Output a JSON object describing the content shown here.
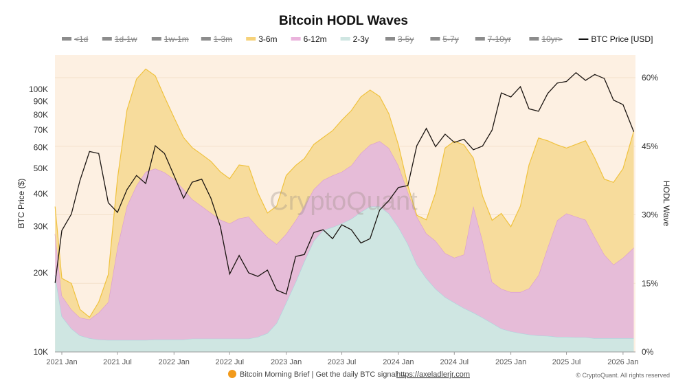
{
  "chart_data": {
    "type": "area",
    "title": "Bitcoin HODL Waves",
    "ylabel_left": "BTC Price ($)",
    "ylabel_right": "HODL Wave",
    "left_axis": {
      "scale": "log",
      "range": [
        10000,
        160000
      ],
      "ticks": [
        "10K",
        "20K",
        "30K",
        "40K",
        "50K",
        "60K",
        "70K",
        "80K",
        "90K",
        "100K"
      ],
      "tick_values": [
        10000,
        20000,
        30000,
        40000,
        50000,
        60000,
        70000,
        80000,
        90000,
        100000
      ]
    },
    "right_axis": {
      "scale": "linear",
      "range": [
        0,
        65
      ],
      "ticks": [
        "0%",
        "15%",
        "30%",
        "45%",
        "60%"
      ],
      "tick_values": [
        0,
        15,
        30,
        45,
        60
      ]
    },
    "x_ticks": [
      {
        "label": "2021 Jan",
        "date": "2021-01-01"
      },
      {
        "label": "2021 Jul",
        "date": "2021-07-01"
      },
      {
        "label": "2022 Jan",
        "date": "2022-01-01"
      },
      {
        "label": "2022 Jul",
        "date": "2022-07-01"
      },
      {
        "label": "2023 Jan",
        "date": "2023-01-01"
      },
      {
        "label": "2023 Jul",
        "date": "2023-07-01"
      },
      {
        "label": "2024 Jan",
        "date": "2024-01-01"
      },
      {
        "label": "2024 Jul",
        "date": "2024-07-01"
      },
      {
        "label": "2025 Jan",
        "date": "2025-01-01"
      },
      {
        "label": "2025 Jul",
        "date": "2025-07-01"
      },
      {
        "label": "2026 Jan",
        "date": "2026-01-01"
      }
    ],
    "grid": true,
    "legend_placement": "top",
    "legend": [
      {
        "label": "<1d",
        "enabled": false,
        "color": "#999999"
      },
      {
        "label": "1d-1w",
        "enabled": false,
        "color": "#999999"
      },
      {
        "label": "1w-1m",
        "enabled": false,
        "color": "#999999"
      },
      {
        "label": "1-3m",
        "enabled": false,
        "color": "#999999"
      },
      {
        "label": "3-6m",
        "enabled": true,
        "color": "#f6d27a"
      },
      {
        "label": "6-12m",
        "enabled": true,
        "color": "#eab3dc"
      },
      {
        "label": "2-3y",
        "enabled": true,
        "color": "#cfe6e2"
      },
      {
        "label": "3-5y",
        "enabled": false,
        "color": "#999999"
      },
      {
        "label": "5-7y",
        "enabled": false,
        "color": "#999999"
      },
      {
        "label": "7-10yr",
        "enabled": false,
        "color": "#999999"
      },
      {
        "label": "10yr>",
        "enabled": false,
        "color": "#999999"
      },
      {
        "label": "BTC Price [USD]",
        "enabled": true,
        "color": "#111111",
        "line": true
      }
    ],
    "x": [
      "2020-12-10",
      "2021-01-01",
      "2021-02-01",
      "2021-03-01",
      "2021-04-01",
      "2021-05-01",
      "2021-06-01",
      "2021-07-01",
      "2021-08-01",
      "2021-09-01",
      "2021-10-01",
      "2021-11-01",
      "2021-12-01",
      "2022-01-01",
      "2022-02-01",
      "2022-03-01",
      "2022-04-01",
      "2022-05-01",
      "2022-06-01",
      "2022-07-01",
      "2022-08-01",
      "2022-09-01",
      "2022-10-01",
      "2022-11-01",
      "2022-12-01",
      "2023-01-01",
      "2023-02-01",
      "2023-03-01",
      "2023-04-01",
      "2023-05-01",
      "2023-06-01",
      "2023-07-01",
      "2023-08-01",
      "2023-09-01",
      "2023-10-01",
      "2023-11-01",
      "2023-12-01",
      "2024-01-01",
      "2024-02-01",
      "2024-03-01",
      "2024-04-01",
      "2024-05-01",
      "2024-06-01",
      "2024-07-01",
      "2024-08-01",
      "2024-09-01",
      "2024-10-01",
      "2024-11-01",
      "2024-12-01",
      "2025-01-01",
      "2025-02-01",
      "2025-03-01",
      "2025-04-01",
      "2025-05-01",
      "2025-06-01",
      "2025-07-01",
      "2025-08-01",
      "2025-09-01",
      "2025-10-01",
      "2025-11-01",
      "2025-12-01",
      "2026-01-01",
      "2026-02-05"
    ],
    "series": [
      {
        "name": "2-3y",
        "color": "#cfe6e2",
        "stroke": "#a9d4de",
        "values": [
          16.8,
          7.8,
          5.1,
          3.6,
          3.0,
          2.7,
          2.6,
          2.6,
          2.6,
          2.6,
          2.6,
          2.7,
          2.7,
          2.7,
          2.7,
          2.9,
          2.9,
          2.9,
          2.9,
          2.9,
          2.9,
          2.9,
          3.3,
          4.1,
          6.3,
          10.8,
          15.3,
          19.8,
          24.3,
          26.6,
          27.3,
          28.1,
          29.1,
          30.6,
          31.8,
          31.8,
          30.3,
          27.3,
          23.6,
          19.1,
          16.1,
          13.8,
          12.0,
          10.8,
          9.6,
          8.6,
          7.5,
          6.3,
          5.1,
          4.5,
          4.1,
          3.8,
          3.6,
          3.5,
          3.3,
          3.3,
          3.2,
          3.2,
          3.0,
          3.0,
          3.0,
          3.0,
          3.0
        ]
      },
      {
        "name": "6-12m",
        "color": "#e6bcd8",
        "stroke": "#d99bd0",
        "values": [
          9.0,
          4.5,
          4.2,
          3.9,
          4.1,
          5.9,
          8.3,
          20.3,
          29.3,
          33.8,
          36.8,
          37.4,
          36.6,
          35.1,
          32.9,
          30.5,
          29.0,
          27.5,
          26.0,
          25.2,
          26.3,
          26.7,
          24.0,
          21.0,
          17.3,
          15.0,
          13.5,
          12.0,
          11.3,
          11.0,
          11.3,
          11.3,
          11.7,
          12.9,
          13.5,
          14.3,
          14.3,
          13.5,
          11.3,
          10.5,
          9.8,
          10.5,
          9.6,
          9.8,
          11.7,
          23.3,
          16.8,
          9.0,
          8.7,
          8.6,
          9.0,
          10.1,
          13.2,
          19.4,
          25.5,
          27.0,
          26.4,
          25.7,
          22.1,
          18.3,
          16.1,
          17.6,
          19.8
        ]
      },
      {
        "name": "3-6m",
        "color": "#f7dc9c",
        "stroke": "#f0c23e",
        "values": [
          6.0,
          3.8,
          5.7,
          1.8,
          0.5,
          2.3,
          6.0,
          15.0,
          21.0,
          23.3,
          22.5,
          20.3,
          16.5,
          13.5,
          11.3,
          11.3,
          11.3,
          11.3,
          10.5,
          9.8,
          11.7,
          11.0,
          7.5,
          5.3,
          8.3,
          12.8,
          12.0,
          10.5,
          9.8,
          9.3,
          9.8,
          11.3,
          12.0,
          12.3,
          12.0,
          9.8,
          7.5,
          4.5,
          1.5,
          0.3,
          3.0,
          10.5,
          23.0,
          25.5,
          24.0,
          10.5,
          9.8,
          13.5,
          16.5,
          14.3,
          18.8,
          27.0,
          30.0,
          23.3,
          16.5,
          14.3,
          15.8,
          17.3,
          17.3,
          16.5,
          18.0,
          19.5,
          25.5
        ]
      }
    ],
    "price": {
      "name": "BTC Price [USD]",
      "axis": "left",
      "values": [
        18300,
        29000,
        33500,
        45000,
        58000,
        57000,
        37000,
        34000,
        41500,
        47000,
        43800,
        61000,
        57000,
        47000,
        38500,
        44300,
        45500,
        38500,
        30000,
        19800,
        23300,
        20000,
        19400,
        20500,
        17200,
        16600,
        23100,
        23500,
        28500,
        29200,
        27000,
        30500,
        29200,
        26000,
        27000,
        34700,
        37700,
        42300,
        43000,
        61000,
        71000,
        60500,
        67500,
        62800,
        64600,
        58900,
        60800,
        70000,
        97000,
        93500,
        102400,
        84300,
        82500,
        96500,
        105700,
        107200,
        115800,
        108200,
        114000,
        110000,
        91000,
        87500,
        69000
      ]
    },
    "watermark": "CryptoQuant"
  },
  "footer": {
    "brief_text": "Bitcoin Morning Brief | Get the daily BTC signal →",
    "link": "https://axeladlerjr.com",
    "copyright": "© CryptoQuant. All rights reserved"
  }
}
